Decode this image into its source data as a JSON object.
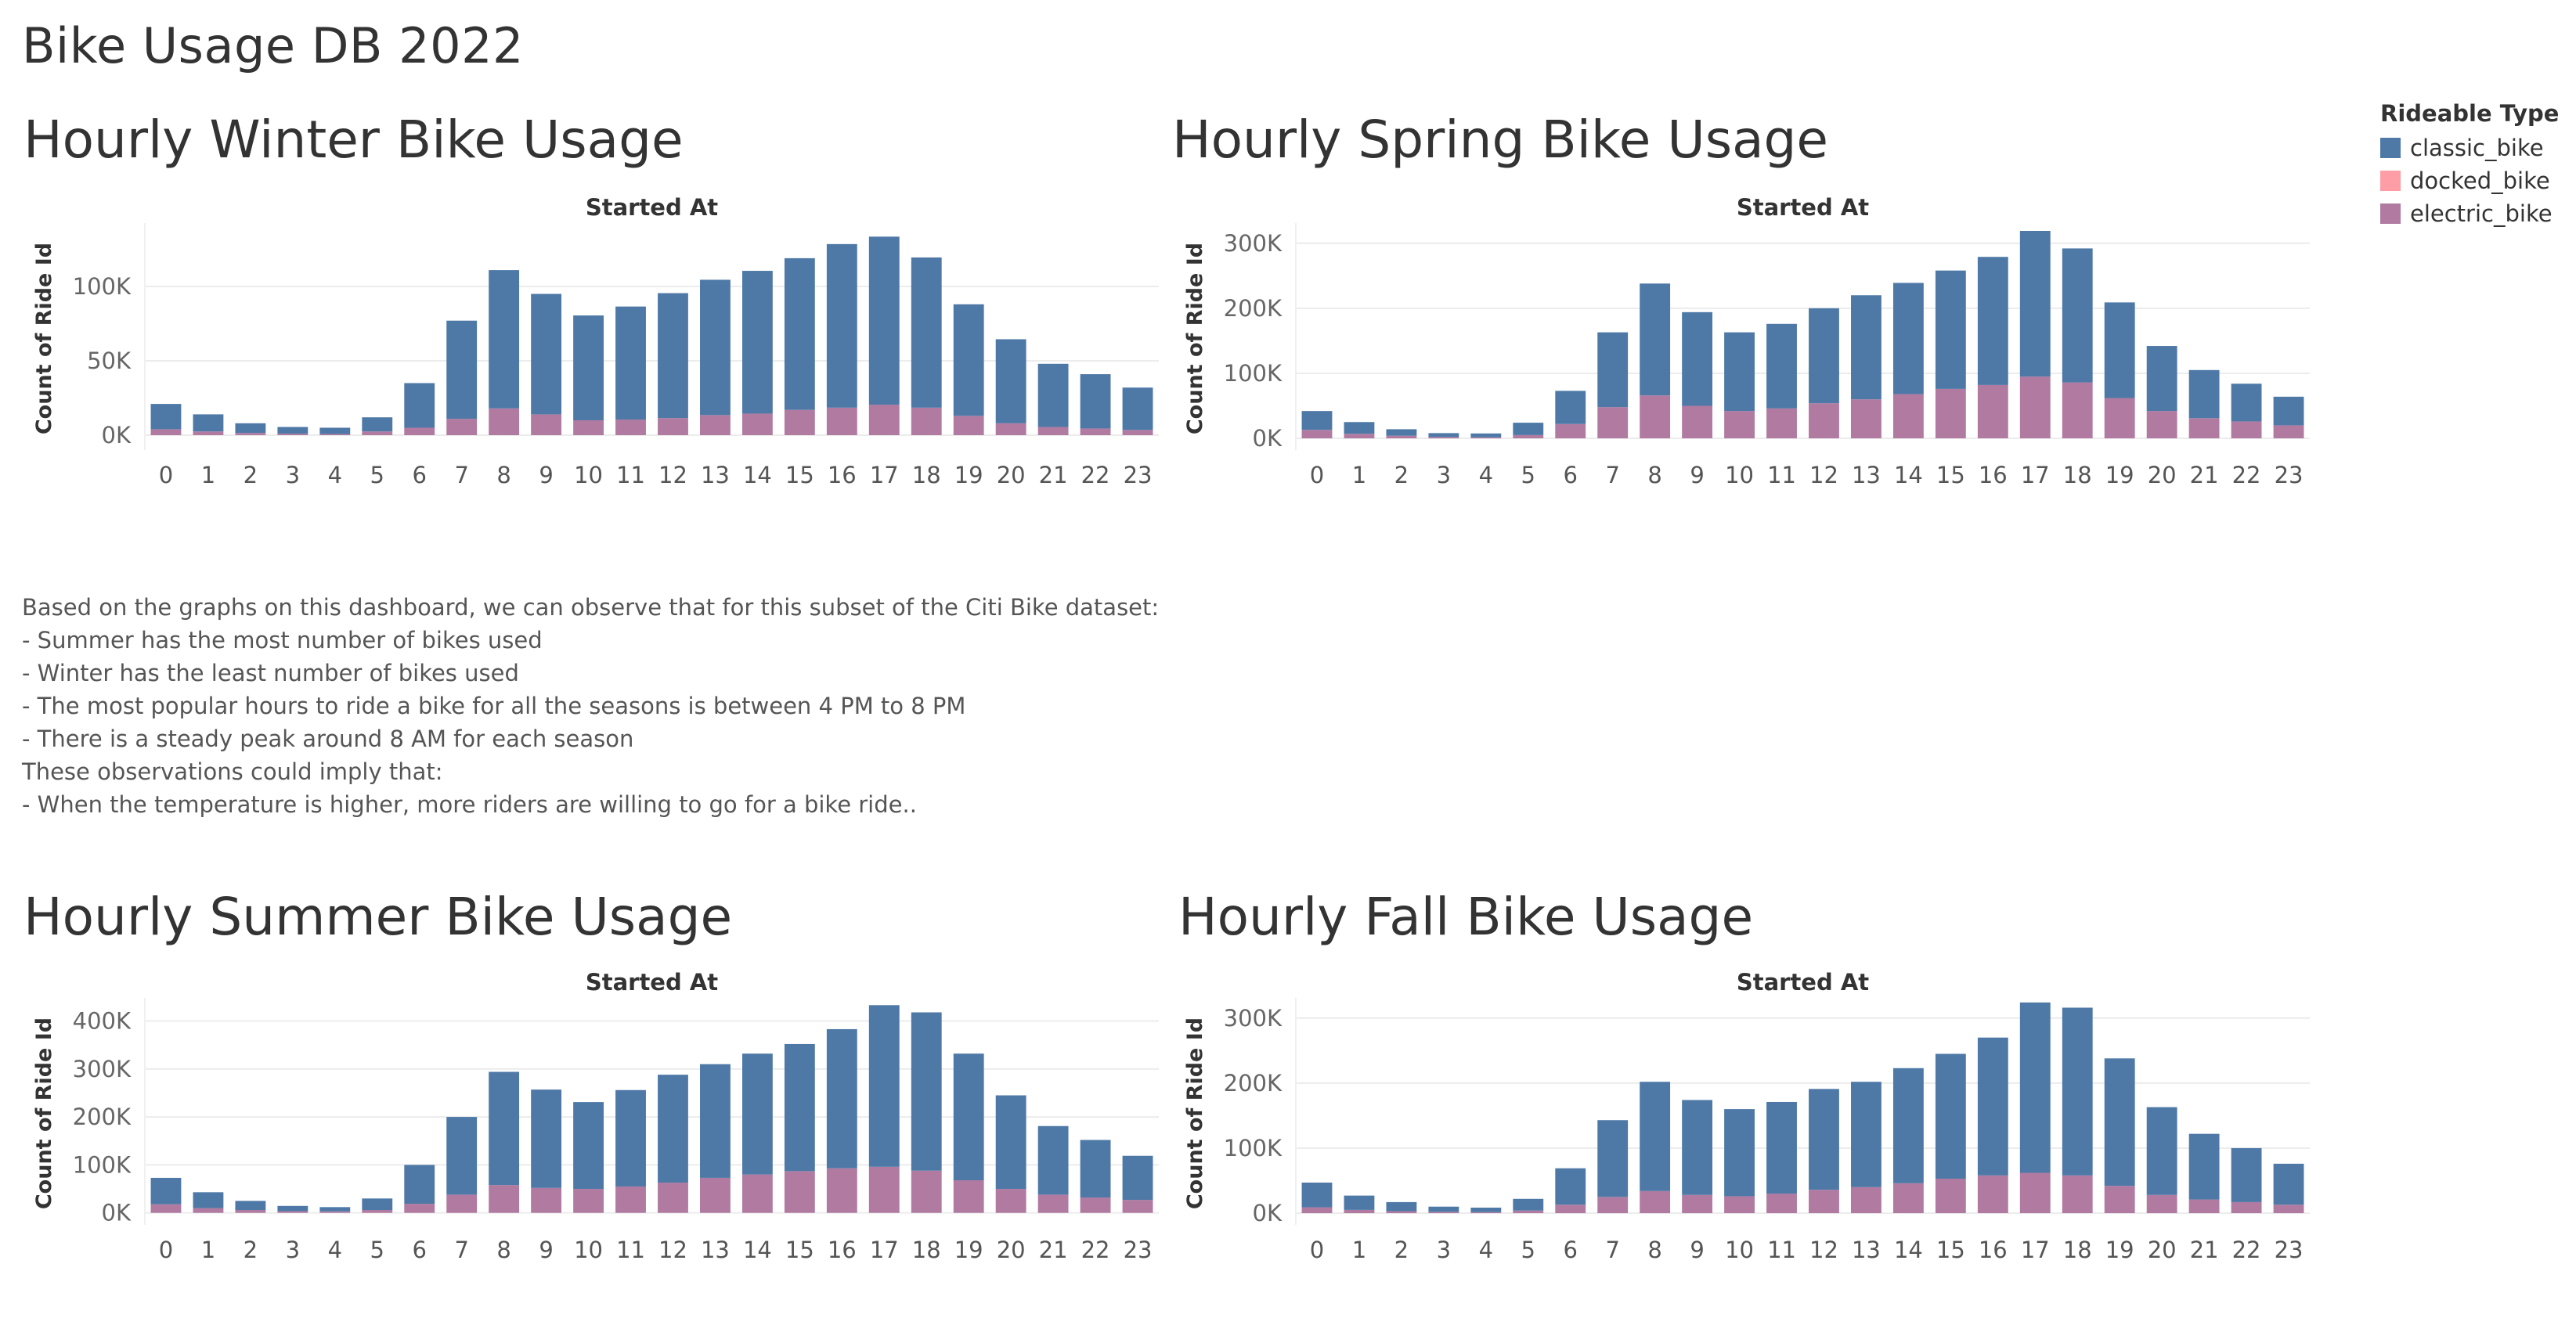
{
  "dashboard_title": "Bike Usage DB 2022",
  "legend": {
    "title": "Rideable Type",
    "items": [
      {
        "label": "classic_bike",
        "color": "#4e79a7"
      },
      {
        "label": "docked_bike",
        "color": "#ff9da7"
      },
      {
        "label": "electric_bike",
        "color": "#b07aa1"
      }
    ]
  },
  "notes": [
    "Based on the graphs on this dashboard, we can observe that for this subset of the Citi Bike dataset:",
    "- Summer has the most number of bikes used",
    "- Winter has the least number of bikes used",
    "- The most popular hours to ride a bike for all the seasons is between 4 PM to 8 PM",
    "- There is a steady peak around 8 AM for each season",
    "",
    "These observations could imply that:",
    "- When the temperature is higher, more riders are willing to go for a bike ride.."
  ],
  "chart_data": [
    {
      "id": "winter",
      "type": "bar",
      "stacked": true,
      "title": "Hourly Winter Bike Usage",
      "column_header": "Started At",
      "ylabel": "Count of Ride Id",
      "categories": [
        "0",
        "1",
        "2",
        "3",
        "4",
        "5",
        "6",
        "7",
        "8",
        "9",
        "10",
        "11",
        "12",
        "13",
        "14",
        "15",
        "16",
        "17",
        "18",
        "19",
        "20",
        "21",
        "22",
        "23"
      ],
      "ylim": [
        -10000,
        140000
      ],
      "yticks": [
        0,
        50000,
        100000
      ],
      "ytick_labels": [
        "0K",
        "50K",
        "100K"
      ],
      "grid": true,
      "series": [
        {
          "name": "electric_bike",
          "color": "#b07aa1",
          "values": [
            4000,
            2500,
            1500,
            1000,
            800,
            2500,
            5000,
            11000,
            18000,
            14000,
            10000,
            10500,
            11500,
            13500,
            14500,
            17000,
            18500,
            20500,
            18500,
            13000,
            8000,
            5500,
            4500,
            3500
          ]
        },
        {
          "name": "docked_bike",
          "color": "#ff9da7",
          "values": [
            0,
            0,
            0,
            0,
            0,
            0,
            0,
            0,
            0,
            0,
            0,
            0,
            0,
            0,
            0,
            0,
            0,
            0,
            0,
            0,
            0,
            0,
            0,
            0
          ]
        },
        {
          "name": "classic_bike",
          "color": "#4e79a7",
          "values": [
            17000,
            11500,
            6500,
            4500,
            4200,
            9500,
            30000,
            66000,
            93000,
            81000,
            70500,
            76000,
            84000,
            91000,
            96000,
            102000,
            110000,
            113000,
            101000,
            75000,
            56500,
            42500,
            36500,
            28500
          ]
        }
      ]
    },
    {
      "id": "spring",
      "type": "bar",
      "stacked": true,
      "title": "Hourly Spring Bike Usage",
      "column_header": "Started At",
      "ylabel": "Count of Ride Id",
      "categories": [
        "0",
        "1",
        "2",
        "3",
        "4",
        "5",
        "6",
        "7",
        "8",
        "9",
        "10",
        "11",
        "12",
        "13",
        "14",
        "15",
        "16",
        "17",
        "18",
        "19",
        "20",
        "21",
        "22",
        "23"
      ],
      "ylim": [
        -18000,
        325000
      ],
      "yticks": [
        0,
        100000,
        200000,
        300000
      ],
      "ytick_labels": [
        "0K",
        "100K",
        "200K",
        "300K"
      ],
      "grid": true,
      "series": [
        {
          "name": "electric_bike",
          "color": "#b07aa1",
          "values": [
            13000,
            7000,
            4000,
            2000,
            1500,
            5000,
            22000,
            48000,
            66000,
            50000,
            42000,
            46000,
            54000,
            60000,
            68000,
            76000,
            82000,
            95000,
            86000,
            62000,
            42000,
            31000,
            26000,
            20000
          ]
        },
        {
          "name": "docked_bike",
          "color": "#ff9da7",
          "values": [
            0,
            0,
            0,
            0,
            0,
            0,
            0,
            0,
            0,
            0,
            0,
            0,
            0,
            0,
            0,
            0,
            0,
            0,
            0,
            0,
            0,
            0,
            0,
            0
          ]
        },
        {
          "name": "classic_bike",
          "color": "#4e79a7",
          "values": [
            29000,
            18000,
            10000,
            6000,
            6000,
            19000,
            51000,
            115000,
            172000,
            144000,
            121000,
            130000,
            146000,
            160000,
            171000,
            182000,
            197000,
            224000,
            206000,
            147000,
            100000,
            74000,
            58000,
            44000
          ]
        }
      ]
    },
    {
      "id": "summer",
      "type": "bar",
      "stacked": true,
      "title": "Hourly Summer Bike Usage",
      "column_header": "Started At",
      "ylabel": "Count of Ride Id",
      "categories": [
        "0",
        "1",
        "2",
        "3",
        "4",
        "5",
        "6",
        "7",
        "8",
        "9",
        "10",
        "11",
        "12",
        "13",
        "14",
        "15",
        "16",
        "17",
        "18",
        "19",
        "20",
        "21",
        "22",
        "23"
      ],
      "ylim": [
        -25000,
        440000
      ],
      "yticks": [
        0,
        100000,
        200000,
        300000,
        400000
      ],
      "ytick_labels": [
        "0K",
        "100K",
        "200K",
        "300K",
        "400K"
      ],
      "grid": true,
      "series": [
        {
          "name": "electric_bike",
          "color": "#b07aa1",
          "values": [
            18000,
            10000,
            6000,
            3500,
            3000,
            6000,
            19000,
            38000,
            58000,
            52000,
            50000,
            55000,
            63000,
            73000,
            80000,
            87000,
            93000,
            96000,
            88000,
            68000,
            50000,
            38000,
            32000,
            27000
          ]
        },
        {
          "name": "docked_bike",
          "color": "#ff9da7",
          "values": [
            0,
            0,
            0,
            0,
            0,
            0,
            0,
            0,
            0,
            0,
            0,
            0,
            0,
            0,
            0,
            0,
            0,
            0,
            0,
            0,
            0,
            0,
            0,
            0
          ]
        },
        {
          "name": "classic_bike",
          "color": "#4e79a7",
          "values": [
            55000,
            33000,
            19000,
            11000,
            9000,
            24000,
            81000,
            162000,
            236000,
            205000,
            181000,
            201000,
            225000,
            237000,
            252000,
            265000,
            290000,
            337000,
            330000,
            264000,
            195000,
            143000,
            120000,
            92000
          ]
        }
      ]
    },
    {
      "id": "fall",
      "type": "bar",
      "stacked": true,
      "title": "Hourly Fall Bike Usage",
      "column_header": "Started At",
      "ylabel": "Count of Ride Id",
      "categories": [
        "0",
        "1",
        "2",
        "3",
        "4",
        "5",
        "6",
        "7",
        "8",
        "9",
        "10",
        "11",
        "12",
        "13",
        "14",
        "15",
        "16",
        "17",
        "18",
        "19",
        "20",
        "21",
        "22",
        "23"
      ],
      "ylim": [
        -18000,
        325000
      ],
      "yticks": [
        0,
        100000,
        200000,
        300000
      ],
      "ytick_labels": [
        "0K",
        "100K",
        "200K",
        "300K"
      ],
      "grid": true,
      "series": [
        {
          "name": "electric_bike",
          "color": "#b07aa1",
          "values": [
            9000,
            5000,
            3000,
            2000,
            1500,
            4000,
            13000,
            25000,
            34000,
            28000,
            26000,
            30000,
            36000,
            40000,
            46000,
            53000,
            58000,
            62000,
            58000,
            42000,
            28000,
            21000,
            17000,
            13000
          ]
        },
        {
          "name": "docked_bike",
          "color": "#ff9da7",
          "values": [
            0,
            0,
            0,
            0,
            0,
            0,
            0,
            0,
            0,
            0,
            0,
            0,
            0,
            0,
            0,
            0,
            0,
            0,
            0,
            0,
            0,
            0,
            0,
            0
          ]
        },
        {
          "name": "classic_bike",
          "color": "#4e79a7",
          "values": [
            38000,
            22000,
            14000,
            8000,
            7000,
            18000,
            56000,
            118000,
            168000,
            146000,
            134000,
            141000,
            155000,
            162000,
            177000,
            192000,
            212000,
            262000,
            258000,
            196000,
            135000,
            101000,
            83000,
            63000
          ]
        }
      ]
    }
  ]
}
